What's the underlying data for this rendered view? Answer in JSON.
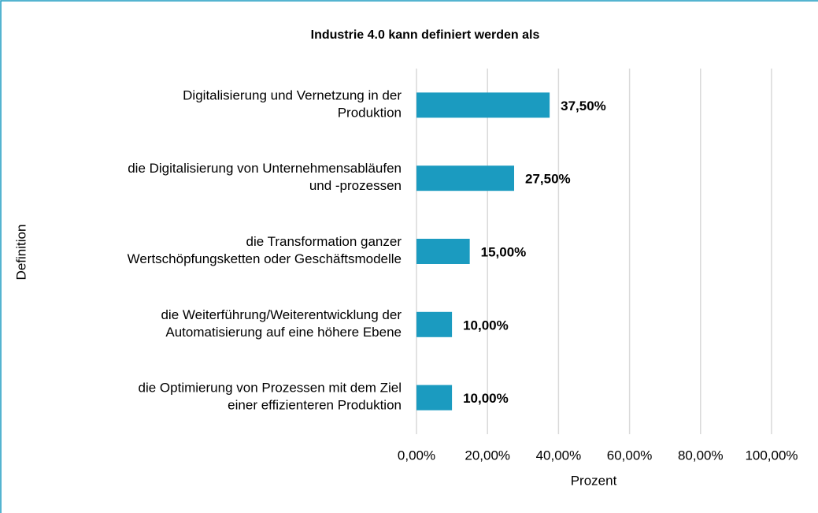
{
  "chart_data": {
    "type": "hbar",
    "title": "Industrie 4.0 kann definiert werden als",
    "x_label": "Prozent",
    "y_label": "Definition",
    "categories": [
      "Digitalisierung und Vernetzung in der\nProduktion",
      "die Digitalisierung von Unternehmensabläufen\nund -prozessen",
      "die Transformation ganzer\nWertschöpfungsketten oder Geschäftsmodelle",
      "die Weiterführung/Weiterentwicklung der\nAutomatisierung auf eine höhere Ebene",
      "die Optimierung von Prozessen mit dem Ziel\neiner effizienteren Produktion"
    ],
    "values": [
      37.5,
      27.5,
      15,
      10,
      10
    ],
    "value_labels": [
      "37,50%",
      "27,50%",
      "15,00%",
      "10,00%",
      "10,00%"
    ],
    "color": "#1b9bc0",
    "xlim": [
      0,
      100
    ],
    "xticks": [
      {
        "value": 0,
        "label": "0,00%"
      },
      {
        "value": 20,
        "label": "20,00%"
      },
      {
        "value": 40,
        "label": "40,00%"
      },
      {
        "value": 60,
        "label": "60,00%"
      },
      {
        "value": 80,
        "label": "80,00%"
      },
      {
        "value": 100,
        "label": "100,00%"
      }
    ],
    "grid": true
  }
}
